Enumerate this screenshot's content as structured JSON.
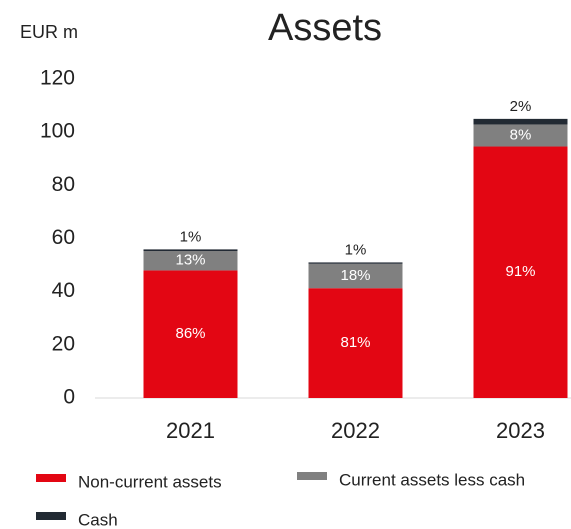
{
  "chart_data": {
    "type": "stacked_bar",
    "title": "Assets",
    "y_axis_label": "EUR m",
    "categories": [
      "2021",
      "2022",
      "2023"
    ],
    "series": [
      {
        "name": "Non-current assets",
        "color": "#e30613",
        "values": [
          48,
          41.3,
          94.6
        ],
        "labels": [
          "86%",
          "81%",
          "91%"
        ]
      },
      {
        "name": "Current assets less cash",
        "color": "#808080",
        "values": [
          7.3,
          9.2,
          8.3
        ],
        "labels": [
          "13%",
          "18%",
          "8%"
        ]
      },
      {
        "name": "Cash",
        "color": "#222a33",
        "values": [
          0.6,
          0.5,
          2.1
        ],
        "labels": [
          "1%",
          "1%",
          "2%"
        ]
      }
    ],
    "ylim": [
      0,
      120
    ],
    "yticks": [
      0,
      20,
      40,
      60,
      80,
      100,
      120
    ],
    "grid": false
  }
}
